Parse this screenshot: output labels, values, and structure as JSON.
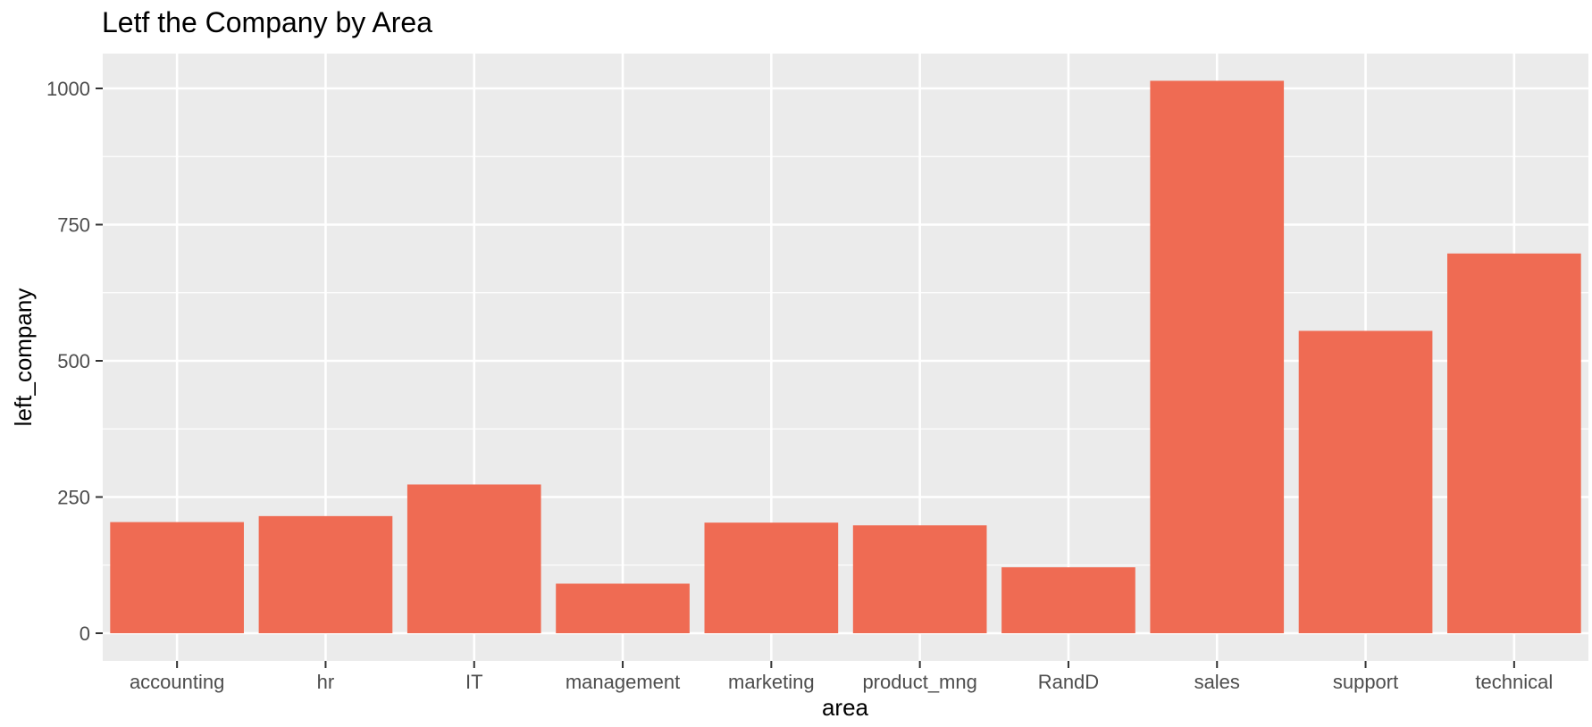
{
  "chart_data": {
    "type": "bar",
    "title": "Letf the Company by Area",
    "xlabel": "area",
    "ylabel": "left_company",
    "categories": [
      "accounting",
      "hr",
      "IT",
      "management",
      "marketing",
      "product_mng",
      "RandD",
      "sales",
      "support",
      "technical"
    ],
    "values": [
      204,
      215,
      273,
      91,
      203,
      198,
      121,
      1014,
      555,
      697
    ],
    "ylim": [
      0,
      1065
    ],
    "yticks": [
      0,
      250,
      500,
      750,
      1000
    ],
    "grid": true,
    "colors": {
      "bar": "#ef6b53",
      "panel": "#ebebeb",
      "grid": "#ffffff"
    }
  }
}
